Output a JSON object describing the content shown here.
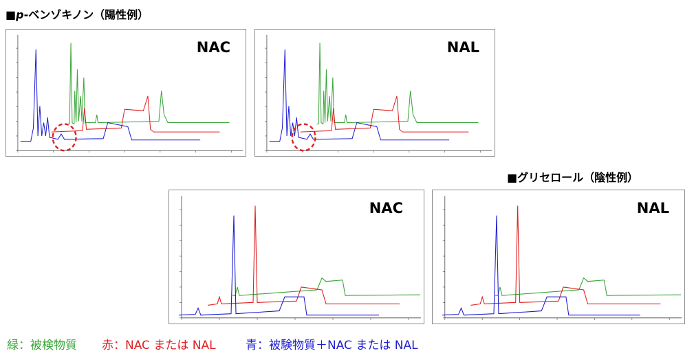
{
  "section1": {
    "prefix": "■",
    "italic": "p",
    "rest": "-ベンゾキノン（陽性例）"
  },
  "section2": {
    "title": "■グリセロール（陰性例）"
  },
  "panels": [
    "NAC",
    "NAL",
    "NAC",
    "NAL"
  ],
  "legend": [
    "緑：被検物質",
    "赤：NAC または NAL",
    "青：被験物質＋NAC または NAL"
  ]
}
